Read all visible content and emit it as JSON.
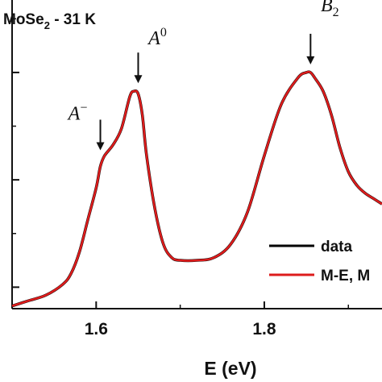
{
  "chart_data": {
    "type": "line",
    "sample_label": {
      "main": "MoSe",
      "sub": "2",
      "rest": " - 31 K"
    },
    "xlabel": "E (eV)",
    "ylabel": "",
    "xlim": [
      1.5,
      1.94
    ],
    "ylim": [
      0,
      1.15
    ],
    "x_ticks": [
      1.6,
      1.8
    ],
    "x_tick_labels": [
      "1.6",
      "1.8"
    ],
    "y_ticks": [
      0.08,
      0.48,
      0.88
    ],
    "grid": false,
    "legend_position": "bottom-right",
    "series": [
      {
        "name": "data",
        "color": "#000000",
        "x": [
          1.5,
          1.52,
          1.54,
          1.56,
          1.57,
          1.58,
          1.59,
          1.6,
          1.605,
          1.61,
          1.62,
          1.63,
          1.64,
          1.645,
          1.65,
          1.655,
          1.66,
          1.67,
          1.68,
          1.69,
          1.7,
          1.72,
          1.74,
          1.76,
          1.78,
          1.8,
          1.82,
          1.84,
          1.85,
          1.855,
          1.86,
          1.87,
          1.88,
          1.89,
          1.9,
          1.91,
          1.92,
          1.93,
          1.94
        ],
        "y": [
          0.01,
          0.03,
          0.05,
          0.09,
          0.13,
          0.21,
          0.33,
          0.45,
          0.53,
          0.57,
          0.61,
          0.67,
          0.79,
          0.81,
          0.8,
          0.72,
          0.57,
          0.37,
          0.24,
          0.19,
          0.18,
          0.18,
          0.19,
          0.24,
          0.36,
          0.57,
          0.76,
          0.86,
          0.88,
          0.88,
          0.86,
          0.81,
          0.72,
          0.6,
          0.51,
          0.46,
          0.43,
          0.41,
          0.39
        ]
      },
      {
        "name": "M-E, M",
        "color": "#dd1c1c",
        "x": [
          1.5,
          1.52,
          1.54,
          1.56,
          1.57,
          1.58,
          1.59,
          1.6,
          1.605,
          1.61,
          1.62,
          1.63,
          1.64,
          1.645,
          1.65,
          1.655,
          1.66,
          1.67,
          1.68,
          1.69,
          1.7,
          1.72,
          1.74,
          1.76,
          1.78,
          1.8,
          1.82,
          1.84,
          1.85,
          1.855,
          1.86,
          1.87,
          1.88,
          1.89,
          1.9,
          1.91,
          1.92,
          1.93,
          1.94
        ],
        "y": [
          0.01,
          0.03,
          0.05,
          0.09,
          0.13,
          0.21,
          0.33,
          0.45,
          0.53,
          0.57,
          0.61,
          0.67,
          0.79,
          0.81,
          0.8,
          0.72,
          0.57,
          0.37,
          0.24,
          0.19,
          0.18,
          0.18,
          0.19,
          0.24,
          0.36,
          0.57,
          0.76,
          0.86,
          0.88,
          0.88,
          0.86,
          0.81,
          0.72,
          0.6,
          0.51,
          0.46,
          0.43,
          0.41,
          0.39
        ]
      }
    ],
    "annotations": [
      {
        "name": "A",
        "sup": "−",
        "sub": "",
        "x": 1.605,
        "arrow_tip_y": 0.59
      },
      {
        "name": "A",
        "sup": "0",
        "sub": "",
        "x": 1.65,
        "arrow_tip_y": 0.84
      },
      {
        "name": "B",
        "sup": "",
        "sub": "2",
        "x": 1.855,
        "arrow_tip_y": 0.91
      }
    ]
  }
}
